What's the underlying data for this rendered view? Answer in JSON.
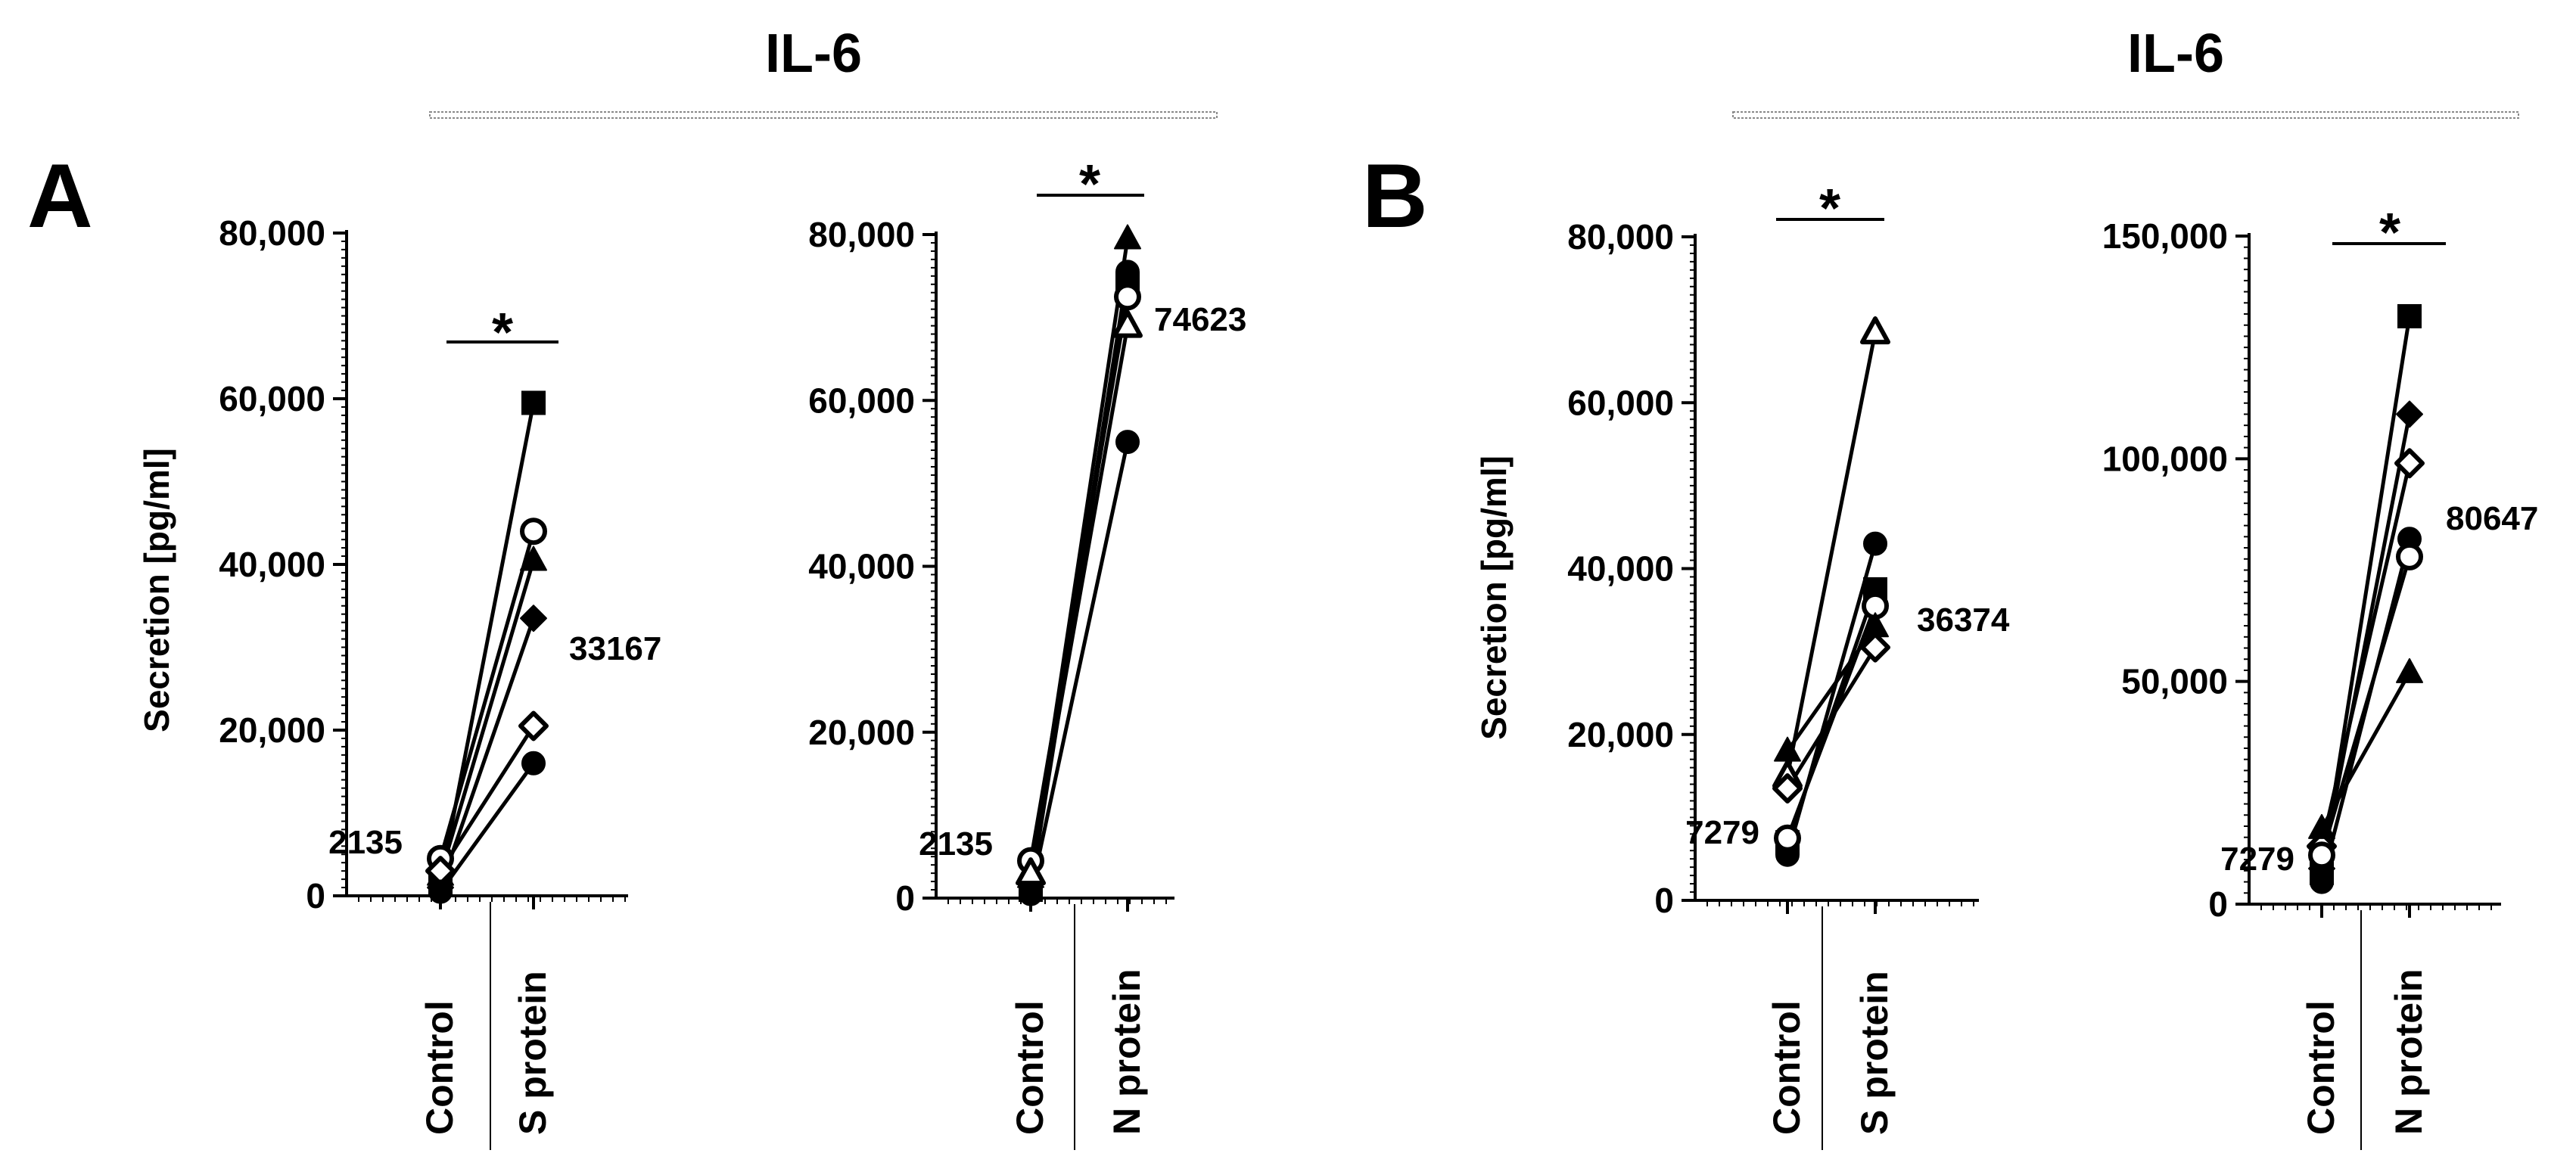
{
  "figure": {
    "panels": [
      {
        "letter": "A",
        "title": "IL-6"
      },
      {
        "letter": "B",
        "title": "IL-6"
      }
    ],
    "ylabel": "Secretion [pg/ml]",
    "significance": "*"
  },
  "chart_data": [
    {
      "id": "A1",
      "type": "line",
      "panel": "A",
      "categories": [
        "Control",
        "S protein"
      ],
      "ylabel": "Secretion [pg/ml]",
      "ylim": [
        0,
        80000
      ],
      "yticks": [
        0,
        20000,
        40000,
        60000,
        80000
      ],
      "yticklabels": [
        "0",
        "20,000",
        "40,000",
        "60,000",
        "80,000"
      ],
      "mean_labels": [
        "2135",
        "33167"
      ],
      "significance": "*",
      "series": [
        {
          "marker": "square-filled",
          "values": [
            1500,
            59500
          ]
        },
        {
          "marker": "circle-open",
          "values": [
            4500,
            44000
          ]
        },
        {
          "marker": "triangle-filled",
          "values": [
            2500,
            40500
          ]
        },
        {
          "marker": "diamond-filled",
          "values": [
            1000,
            33500
          ]
        },
        {
          "marker": "diamond-open",
          "values": [
            3000,
            20500
          ]
        },
        {
          "marker": "circle-filled",
          "values": [
            500,
            16000
          ]
        }
      ]
    },
    {
      "id": "A2",
      "type": "line",
      "panel": "A",
      "categories": [
        "Control",
        "N protein"
      ],
      "ylabel": "",
      "ylim": [
        0,
        80000
      ],
      "yticks": [
        0,
        20000,
        40000,
        60000,
        80000
      ],
      "yticklabels": [
        "0",
        "20,000",
        "40,000",
        "60,000",
        "80,000"
      ],
      "mean_labels": [
        "2135",
        "74623"
      ],
      "significance": "*",
      "series": [
        {
          "marker": "triangle-filled",
          "values": [
            2500,
            79500
          ]
        },
        {
          "marker": "circle-filled",
          "values": [
            1500,
            75500
          ]
        },
        {
          "marker": "square-filled",
          "values": [
            1000,
            74000
          ]
        },
        {
          "marker": "circle-open",
          "values": [
            4500,
            72500
          ]
        },
        {
          "marker": "triangle-open",
          "values": [
            3000,
            69000
          ]
        },
        {
          "marker": "circle-filled",
          "values": [
            500,
            55000
          ]
        }
      ]
    },
    {
      "id": "B1",
      "type": "line",
      "panel": "B",
      "categories": [
        "Control",
        "S protein"
      ],
      "ylabel": "Secretion [pg/ml]",
      "ylim": [
        0,
        80000
      ],
      "yticks": [
        0,
        20000,
        40000,
        60000,
        80000
      ],
      "yticklabels": [
        "0",
        "20,000",
        "40,000",
        "60,000",
        "80,000"
      ],
      "mean_labels": [
        "7279",
        "36374"
      ],
      "significance": "*",
      "series": [
        {
          "marker": "triangle-open",
          "values": [
            15000,
            68500
          ]
        },
        {
          "marker": "circle-filled",
          "values": [
            5500,
            43000
          ]
        },
        {
          "marker": "square-filled",
          "values": [
            7000,
            37500
          ]
        },
        {
          "marker": "circle-open",
          "values": [
            7500,
            35500
          ]
        },
        {
          "marker": "triangle-filled",
          "values": [
            18000,
            33000
          ]
        },
        {
          "marker": "diamond-open",
          "values": [
            13500,
            30500
          ]
        }
      ]
    },
    {
      "id": "B2",
      "type": "line",
      "panel": "B",
      "categories": [
        "Control",
        "N protein"
      ],
      "ylabel": "",
      "ylim": [
        0,
        150000
      ],
      "yticks": [
        0,
        50000,
        100000,
        150000
      ],
      "yticklabels": [
        "0",
        "50,000",
        "100,000",
        "150,000"
      ],
      "mean_labels": [
        "7279",
        "80647"
      ],
      "significance": "*",
      "series": [
        {
          "marker": "square-filled",
          "values": [
            7000,
            132000
          ]
        },
        {
          "marker": "diamond-filled",
          "values": [
            8000,
            110000
          ]
        },
        {
          "marker": "diamond-open",
          "values": [
            13000,
            99000
          ]
        },
        {
          "marker": "circle-filled",
          "values": [
            5000,
            82000
          ]
        },
        {
          "marker": "circle-open",
          "values": [
            11000,
            78000
          ]
        },
        {
          "marker": "triangle-filled",
          "values": [
            17000,
            52000
          ]
        }
      ]
    }
  ]
}
